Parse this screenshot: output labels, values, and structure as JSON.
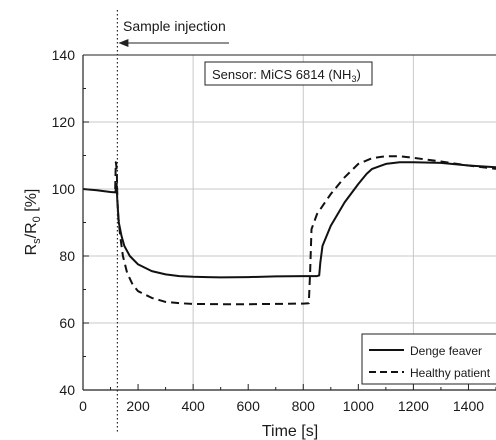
{
  "chart_data": {
    "type": "line",
    "xlabel": "Time [s]",
    "ylabel": "Rs/R0 [%]",
    "xlim": [
      0,
      1500
    ],
    "ylim": [
      40,
      140
    ],
    "xticks": [
      0,
      200,
      400,
      600,
      800,
      1000,
      1200,
      1400
    ],
    "yticks": [
      40,
      60,
      80,
      100,
      120,
      140
    ],
    "grid": true,
    "legend_position": "bottom-right",
    "annotations": {
      "injection_label": "Sample injection",
      "injection_time": 125,
      "sensor_label": "Sensor: MiCS 6814 (NH3)"
    },
    "series": [
      {
        "name": "Denge feaver",
        "style": "solid",
        "color": "#111111",
        "x": [
          0,
          50,
          100,
          118,
          120,
          122,
          125,
          130,
          140,
          150,
          170,
          200,
          250,
          300,
          350,
          400,
          450,
          500,
          600,
          700,
          800,
          850,
          858,
          862,
          870,
          900,
          950,
          1000,
          1030,
          1050,
          1100,
          1150,
          1200,
          1300,
          1400,
          1500
        ],
        "y": [
          100,
          99.6,
          99.1,
          99,
          101,
          101.5,
          96,
          90,
          86,
          83,
          80,
          77.5,
          75.5,
          74.5,
          74,
          73.8,
          73.7,
          73.6,
          73.7,
          73.9,
          74,
          74,
          74.2,
          78,
          83,
          89,
          96,
          101.5,
          104.5,
          106,
          107.5,
          108,
          108,
          107.8,
          107,
          106.5
        ]
      },
      {
        "name": "Healthy patient",
        "style": "dashed",
        "color": "#111111",
        "x": [
          117,
          119,
          121,
          123,
          125,
          128,
          135,
          145,
          160,
          180,
          200,
          250,
          300,
          350,
          400,
          500,
          600,
          700,
          800,
          820,
          825,
          830,
          850,
          900,
          950,
          1000,
          1050,
          1100,
          1150,
          1200,
          1300,
          1400,
          1500
        ],
        "y": [
          100,
          108,
          107,
          104,
          97,
          92,
          86,
          80,
          75,
          71.5,
          69.5,
          67.5,
          66.3,
          65.9,
          65.7,
          65.6,
          65.6,
          65.7,
          65.8,
          65.9,
          75,
          88,
          92.5,
          98.5,
          103.5,
          107.5,
          109.2,
          109.8,
          109.8,
          109.3,
          108.2,
          107,
          106
        ]
      }
    ]
  }
}
